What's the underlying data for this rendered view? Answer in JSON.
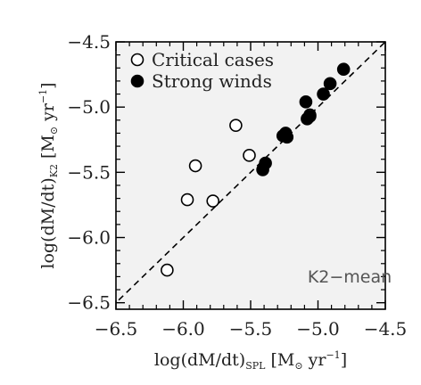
{
  "chart_data": {
    "type": "scatter",
    "title": "",
    "xlabel": {
      "main": "log(dM/dt)",
      "sub": "SPL",
      "unit_open": " [M",
      "sun": "⊙",
      "unit_mid": " yr",
      "exp": "−1",
      "unit_close": "]"
    },
    "ylabel": {
      "main": "log(dM/dt)",
      "sub": "K2",
      "unit_open": " [M",
      "sun": "⊙",
      "unit_mid": " yr",
      "exp": "−1",
      "unit_close": "]"
    },
    "xlim": [
      -6.5,
      -4.5
    ],
    "ylim": [
      -6.55,
      -4.5
    ],
    "xticks": [
      -6.5,
      -6.0,
      -5.5,
      -5.0,
      -4.5
    ],
    "yticks": [
      -6.5,
      -6.0,
      -5.5,
      -5.0,
      -4.5
    ],
    "xtick_labels": [
      "−6.5",
      "−6.0",
      "−5.5",
      "−5.0",
      "−4.5"
    ],
    "ytick_labels": [
      "−6.5",
      "−6.0",
      "−5.5",
      "−5.0",
      "−4.5"
    ],
    "grid": false,
    "legend_position": "top-left",
    "background_color": "#f2f2f2",
    "reference_line": {
      "style": "dashed",
      "slope": 1,
      "intercept": 0,
      "color": "#000000"
    },
    "series": [
      {
        "name": "Critical cases",
        "marker": "open-circle",
        "color": "#000000",
        "points": [
          {
            "x": -6.12,
            "y": -6.25
          },
          {
            "x": -5.97,
            "y": -5.71
          },
          {
            "x": -5.91,
            "y": -5.45
          },
          {
            "x": -5.78,
            "y": -5.72
          },
          {
            "x": -5.61,
            "y": -5.14
          },
          {
            "x": -5.51,
            "y": -5.37
          },
          {
            "x": -5.06,
            "y": -5.06
          }
        ]
      },
      {
        "name": "Strong winds",
        "marker": "filled-circle",
        "color": "#000000",
        "points": [
          {
            "x": -5.41,
            "y": -5.48
          },
          {
            "x": -5.39,
            "y": -5.43
          },
          {
            "x": -5.26,
            "y": -5.22
          },
          {
            "x": -5.24,
            "y": -5.2
          },
          {
            "x": -5.23,
            "y": -5.23
          },
          {
            "x": -5.09,
            "y": -4.96
          },
          {
            "x": -5.08,
            "y": -5.09
          },
          {
            "x": -5.06,
            "y": -5.07
          },
          {
            "x": -4.96,
            "y": -4.9
          },
          {
            "x": -4.91,
            "y": -4.82
          },
          {
            "x": -4.81,
            "y": -4.71
          }
        ]
      }
    ],
    "annotations": [
      {
        "text": "K2−mean",
        "position": "bottom-right"
      }
    ]
  }
}
